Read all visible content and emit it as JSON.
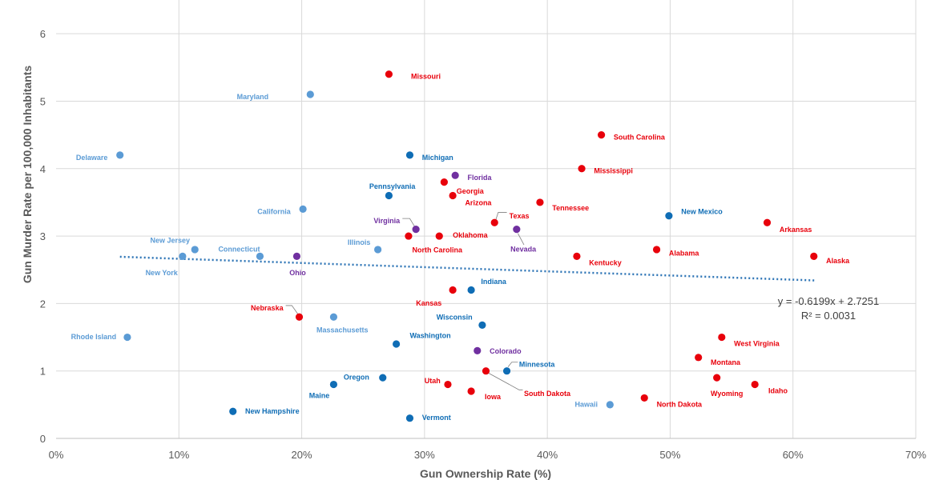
{
  "chart_data": {
    "type": "scatter",
    "title": "",
    "xlabel": "Gun Ownership Rate (%)",
    "ylabel": "Gun Murder Rate per 100,000 Inhabitants",
    "xlim": [
      0,
      70
    ],
    "ylim": [
      0,
      6.5
    ],
    "x_ticks": [
      "0%",
      "10%",
      "20%",
      "30%",
      "40%",
      "50%",
      "60%",
      "70%"
    ],
    "x_tick_values": [
      0,
      10,
      20,
      30,
      40,
      50,
      60,
      70
    ],
    "y_ticks": [
      "0",
      "1",
      "2",
      "3",
      "4",
      "5",
      "6"
    ],
    "y_tick_values": [
      0,
      1,
      2,
      3,
      4,
      5,
      6
    ],
    "grid": true,
    "colors": {
      "red": "#e8000b",
      "blue": "#0f6db5",
      "lightblue": "#5b9bd5",
      "purple": "#7030a0",
      "trend": "#2e75b6",
      "grid": "#d9d9d9"
    },
    "trendline": {
      "style": "dotted",
      "x_range": [
        5.2,
        61.8
      ],
      "slope": -0.6199,
      "intercept": 2.7251,
      "equation": "y = -0.6199x + 2.7251",
      "r2": "R² = 0.0031"
    },
    "points": [
      {
        "name": "Missouri",
        "x": 27.1,
        "y": 5.4,
        "color": "red",
        "lx": 28.9,
        "ly": 5.33
      },
      {
        "name": "Maryland",
        "x": 20.7,
        "y": 5.1,
        "color": "lightblue",
        "lx": 17.3,
        "ly": 5.03,
        "anchor": "end"
      },
      {
        "name": "South Carolina",
        "x": 44.4,
        "y": 4.5,
        "color": "red",
        "lx": 45.4,
        "ly": 4.43
      },
      {
        "name": "Delaware",
        "x": 5.2,
        "y": 4.2,
        "color": "lightblue",
        "lx": 4.2,
        "ly": 4.13,
        "anchor": "end"
      },
      {
        "name": "Michigan",
        "x": 28.8,
        "y": 4.2,
        "color": "blue",
        "lx": 29.8,
        "ly": 4.13
      },
      {
        "name": "Mississippi",
        "x": 42.8,
        "y": 4.0,
        "color": "red",
        "lx": 43.8,
        "ly": 3.93
      },
      {
        "name": "Florida",
        "x": 32.5,
        "y": 3.9,
        "color": "purple",
        "lx": 33.5,
        "ly": 3.83
      },
      {
        "name": "Georgia",
        "x": 31.6,
        "y": 3.8,
        "color": "red",
        "lx": 32.6,
        "ly": 3.63
      },
      {
        "name": "Pennsylvania",
        "x": 27.1,
        "y": 3.6,
        "color": "blue",
        "lx": 25.5,
        "ly": 3.7
      },
      {
        "name": "Arizona",
        "x": 32.3,
        "y": 3.6,
        "color": "red",
        "lx": 33.3,
        "ly": 3.46
      },
      {
        "name": "Tennessee",
        "x": 39.4,
        "y": 3.5,
        "color": "red",
        "lx": 40.4,
        "ly": 3.38
      },
      {
        "name": "California",
        "x": 20.1,
        "y": 3.4,
        "color": "lightblue",
        "lx": 19.1,
        "ly": 3.33,
        "anchor": "end"
      },
      {
        "name": "New Mexico",
        "x": 49.9,
        "y": 3.3,
        "color": "blue",
        "lx": 50.9,
        "ly": 3.33
      },
      {
        "name": "Texas",
        "x": 35.7,
        "y": 3.2,
        "color": "red",
        "lx": 36.9,
        "ly": 3.26
      },
      {
        "name": "Arkansas",
        "x": 57.9,
        "y": 3.2,
        "color": "red",
        "lx": 58.9,
        "ly": 3.06
      },
      {
        "name": "Virginia",
        "x": 29.3,
        "y": 3.1,
        "color": "purple",
        "lx": 28.0,
        "ly": 3.19,
        "anchor": "end"
      },
      {
        "name": "Nevada",
        "x": 37.5,
        "y": 3.1,
        "color": "purple",
        "lx": 37.0,
        "ly": 2.77
      },
      {
        "name": "Oklahoma",
        "x": 31.2,
        "y": 3.0,
        "color": "red",
        "lx": 32.3,
        "ly": 2.98
      },
      {
        "name": "North Carolina",
        "x": 28.7,
        "y": 3.0,
        "color": "red",
        "lx": 29.0,
        "ly": 2.76
      },
      {
        "name": "Illinois",
        "x": 26.2,
        "y": 2.8,
        "color": "lightblue",
        "lx": 25.6,
        "ly": 2.87,
        "anchor": "end"
      },
      {
        "name": "New Jersey",
        "x": 11.3,
        "y": 2.8,
        "color": "lightblue",
        "lx": 10.9,
        "ly": 2.9,
        "anchor": "end"
      },
      {
        "name": "Connecticut",
        "x": 16.6,
        "y": 2.7,
        "color": "lightblue",
        "lx": 16.6,
        "ly": 2.77,
        "anchor": "end"
      },
      {
        "name": "Alabama",
        "x": 48.9,
        "y": 2.8,
        "color": "red",
        "lx": 49.9,
        "ly": 2.71
      },
      {
        "name": "Kentucky",
        "x": 42.4,
        "y": 2.7,
        "color": "red",
        "lx": 43.4,
        "ly": 2.57
      },
      {
        "name": "Alaska",
        "x": 61.7,
        "y": 2.7,
        "color": "red",
        "lx": 62.7,
        "ly": 2.6
      },
      {
        "name": "New York",
        "x": 10.3,
        "y": 2.7,
        "color": "lightblue",
        "lx": 9.9,
        "ly": 2.42,
        "anchor": "end"
      },
      {
        "name": "Ohio",
        "x": 19.6,
        "y": 2.7,
        "color": "purple",
        "lx": 19.0,
        "ly": 2.42
      },
      {
        "name": "Indiana",
        "x": 33.8,
        "y": 2.2,
        "color": "blue",
        "lx": 34.6,
        "ly": 2.29
      },
      {
        "name": "Kansas",
        "x": 32.3,
        "y": 2.2,
        "color": "red",
        "lx": 31.4,
        "ly": 1.97,
        "anchor": "end"
      },
      {
        "name": "Nebraska",
        "x": 19.8,
        "y": 1.8,
        "color": "red",
        "lx": 18.5,
        "ly": 1.9,
        "anchor": "end"
      },
      {
        "name": "Massachusetts",
        "x": 22.6,
        "y": 1.8,
        "color": "lightblue",
        "lx": 21.2,
        "ly": 1.57
      },
      {
        "name": "Wisconsin",
        "x": 34.7,
        "y": 1.68,
        "color": "blue",
        "lx": 33.9,
        "ly": 1.76,
        "anchor": "end"
      },
      {
        "name": "Rhode Island",
        "x": 5.8,
        "y": 1.5,
        "color": "lightblue",
        "lx": 4.9,
        "ly": 1.47,
        "anchor": "end"
      },
      {
        "name": "West Virginia",
        "x": 54.2,
        "y": 1.5,
        "color": "red",
        "lx": 55.2,
        "ly": 1.37
      },
      {
        "name": "Washington",
        "x": 27.7,
        "y": 1.4,
        "color": "blue",
        "lx": 28.8,
        "ly": 1.49
      },
      {
        "name": "Colorado",
        "x": 34.3,
        "y": 1.3,
        "color": "purple",
        "lx": 35.3,
        "ly": 1.26
      },
      {
        "name": "Montana",
        "x": 52.3,
        "y": 1.2,
        "color": "red",
        "lx": 53.3,
        "ly": 1.09
      },
      {
        "name": "Minnesota",
        "x": 36.7,
        "y": 1.0,
        "color": "blue",
        "lx": 37.7,
        "ly": 1.06
      },
      {
        "name": "South Dakota",
        "x": 35.0,
        "y": 1.0,
        "color": "red",
        "lx": 38.1,
        "ly": 0.63
      },
      {
        "name": "Oregon",
        "x": 26.6,
        "y": 0.9,
        "color": "blue",
        "lx": 25.5,
        "ly": 0.87,
        "anchor": "end"
      },
      {
        "name": "Wyoming",
        "x": 53.8,
        "y": 0.9,
        "color": "red",
        "lx": 53.3,
        "ly": 0.63
      },
      {
        "name": "Utah",
        "x": 31.9,
        "y": 0.8,
        "color": "red",
        "lx": 31.3,
        "ly": 0.82,
        "anchor": "end"
      },
      {
        "name": "Idaho",
        "x": 56.9,
        "y": 0.8,
        "color": "red",
        "lx": 58.0,
        "ly": 0.67
      },
      {
        "name": "Maine",
        "x": 22.6,
        "y": 0.8,
        "color": "blue",
        "lx": 20.6,
        "ly": 0.6
      },
      {
        "name": "Iowa",
        "x": 33.8,
        "y": 0.7,
        "color": "red",
        "lx": 34.9,
        "ly": 0.58
      },
      {
        "name": "North Dakota",
        "x": 47.9,
        "y": 0.6,
        "color": "red",
        "lx": 48.9,
        "ly": 0.47
      },
      {
        "name": "Hawaii",
        "x": 45.1,
        "y": 0.5,
        "color": "lightblue",
        "lx": 44.1,
        "ly": 0.47,
        "anchor": "end"
      },
      {
        "name": "New Hampshire",
        "x": 14.4,
        "y": 0.4,
        "color": "blue",
        "lx": 15.4,
        "ly": 0.37
      },
      {
        "name": "Vermont",
        "x": 28.8,
        "y": 0.3,
        "color": "blue",
        "lx": 29.8,
        "ly": 0.27
      }
    ],
    "leaders": [
      {
        "from": "Nebraska",
        "x1": 18.7,
        "y1": 1.97,
        "x2": 19.2,
        "y2": 1.97,
        "x3": 19.7,
        "y3": 1.84
      },
      {
        "from": "Virginia",
        "x1": 28.2,
        "y1": 3.26,
        "x2": 28.8,
        "y2": 3.26,
        "x3": 29.2,
        "y3": 3.14
      },
      {
        "from": "Texas",
        "x1": 36.7,
        "y1": 3.35,
        "x2": 36.0,
        "y2": 3.35,
        "x3": 35.8,
        "y3": 3.24
      },
      {
        "from": "Nevada",
        "x1": 37.6,
        "y1": 3.04,
        "x2": 38.1,
        "y2": 2.87
      },
      {
        "from": "South Dakota",
        "x1": 35.2,
        "y1": 0.97,
        "x2": 37.7,
        "y2": 0.72,
        "x3": 38.0,
        "y3": 0.72
      },
      {
        "from": "Minnesota",
        "x1": 36.8,
        "y1": 1.06,
        "x2": 37.1,
        "y2": 1.13,
        "x3": 37.6,
        "y3": 1.13
      }
    ]
  }
}
